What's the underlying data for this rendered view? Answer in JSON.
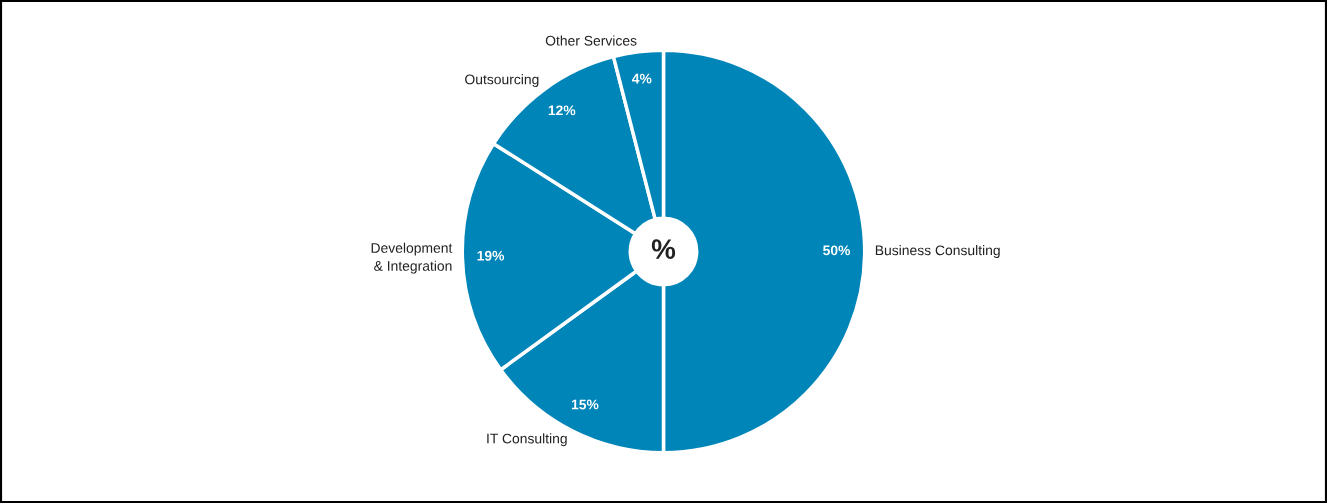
{
  "chart_data": {
    "type": "donut",
    "categories": [
      "Business Consulting",
      "IT Consulting",
      "Development\n& Integration",
      "Outsourcing",
      "Other Services"
    ],
    "values": [
      50,
      15,
      19,
      12,
      4
    ],
    "colors": [
      "#0085b8",
      "#0085b8",
      "#0085b8",
      "#0085b8",
      "#0085b8"
    ],
    "data_labels": true,
    "value_labels": [
      "50%",
      "15%",
      "19%",
      "12%",
      "4%"
    ],
    "annotations": [
      "%"
    ],
    "legend": false
  }
}
